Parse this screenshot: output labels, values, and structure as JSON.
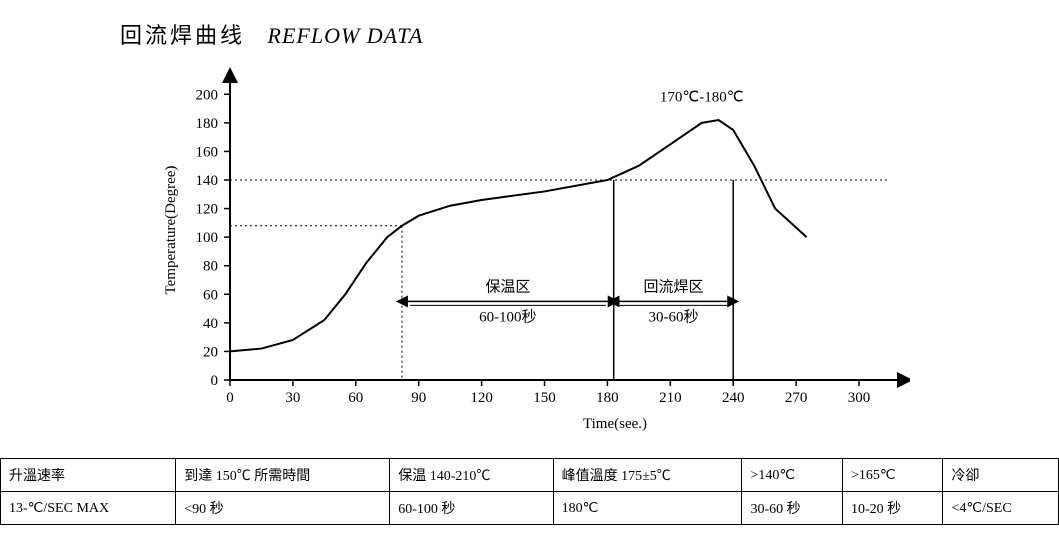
{
  "title": {
    "cn": "回流焊曲线",
    "en": "REFLOW DATA"
  },
  "chart": {
    "type": "line",
    "xlabel": "Time(see.)",
    "ylabel": "Temperature(Degree)",
    "xlim": [
      0,
      310
    ],
    "ylim": [
      0,
      210
    ],
    "xticks": [
      0,
      30,
      60,
      90,
      120,
      150,
      180,
      210,
      240,
      270,
      300
    ],
    "yticks": [
      0,
      20,
      40,
      60,
      80,
      100,
      120,
      140,
      160,
      180,
      200
    ],
    "line_color": "#000000",
    "line_width": 2,
    "background_color": "#ffffff",
    "curve": [
      [
        0,
        20
      ],
      [
        15,
        22
      ],
      [
        30,
        28
      ],
      [
        45,
        42
      ],
      [
        55,
        60
      ],
      [
        65,
        82
      ],
      [
        75,
        100
      ],
      [
        82,
        108
      ],
      [
        90,
        115
      ],
      [
        105,
        122
      ],
      [
        120,
        126
      ],
      [
        150,
        132
      ],
      [
        180,
        140
      ],
      [
        195,
        150
      ],
      [
        210,
        165
      ],
      [
        225,
        180
      ],
      [
        233,
        182
      ],
      [
        240,
        175
      ],
      [
        250,
        150
      ],
      [
        260,
        120
      ],
      [
        275,
        100
      ]
    ],
    "peak_label": "170℃-180℃",
    "zone1": {
      "label_cn": "保温区",
      "label_time": "60-100秒",
      "x_from": 82,
      "x_to": 183,
      "y_ref": 108
    },
    "zone2": {
      "label_cn": "回流焊区",
      "label_time": "30-60秒",
      "x_from": 183,
      "x_to": 240,
      "y_ref": 140
    },
    "dotted_h1_y": 108,
    "dotted_h2_y": 140
  },
  "table": {
    "rows": [
      [
        "升溫速率",
        "到達 150℃ 所需時間",
        "保温 140-210℃",
        "峰值溫度 175±5℃",
        ">140℃",
        ">165℃",
        "冷卻"
      ],
      [
        "13-℃/SEC MAX",
        "<90 秒",
        "60-100 秒",
        "180℃",
        "30-60 秒",
        "10-20 秒",
        "<4℃/SEC"
      ]
    ]
  }
}
